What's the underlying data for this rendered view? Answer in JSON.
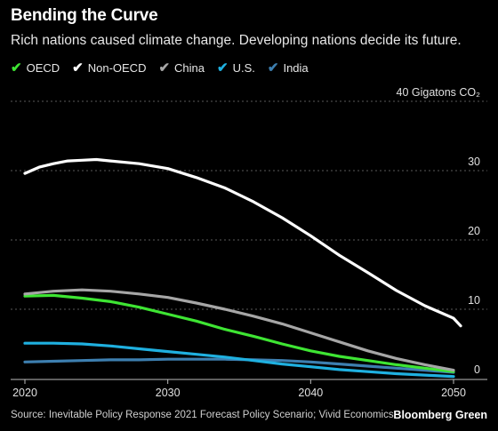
{
  "header": {
    "title": "Bending the Curve",
    "subtitle": "Rich nations caused climate change. Developing nations decide its future."
  },
  "footer": {
    "source": "Source: Inevitable Policy Response 2021 Forecast Policy Scenario; Vivid Economics",
    "brand": "Bloomberg Green"
  },
  "chart_data": {
    "type": "line",
    "ylabel": "40 Gigatons CO₂",
    "ylim": [
      0,
      40
    ],
    "xlim": [
      2020,
      2050
    ],
    "yticks": [
      0,
      10,
      20,
      30,
      40
    ],
    "ytick_labels": [
      "0",
      "10",
      "20",
      "30",
      ""
    ],
    "xticks": [
      2020,
      2030,
      2040,
      2050
    ],
    "xtick_labels": [
      "2020",
      "2030",
      "2040",
      "2050"
    ],
    "grid": "horizontal-dashed",
    "legend_position": "top-left",
    "series": [
      {
        "name": "OECD",
        "color": "#3ee533",
        "points": [
          [
            2020,
            11.9
          ],
          [
            2022,
            12
          ],
          [
            2024,
            11.6
          ],
          [
            2026,
            11.1
          ],
          [
            2028,
            10.3
          ],
          [
            2030,
            9.3
          ],
          [
            2032,
            8.3
          ],
          [
            2034,
            7.1
          ],
          [
            2036,
            6.1
          ],
          [
            2038,
            5
          ],
          [
            2040,
            4
          ],
          [
            2042,
            3.2
          ],
          [
            2044,
            2.6
          ],
          [
            2046,
            2
          ],
          [
            2048,
            1.5
          ],
          [
            2050,
            1
          ]
        ]
      },
      {
        "name": "Non-OECD",
        "color": "#ffffff",
        "points": [
          [
            2020,
            29.6
          ],
          [
            2021,
            30.5
          ],
          [
            2022,
            31
          ],
          [
            2023,
            31.4
          ],
          [
            2024,
            31.5
          ],
          [
            2025,
            31.6
          ],
          [
            2026,
            31.4
          ],
          [
            2028,
            31
          ],
          [
            2030,
            30.3
          ],
          [
            2032,
            29
          ],
          [
            2034,
            27.5
          ],
          [
            2036,
            25.5
          ],
          [
            2038,
            23.2
          ],
          [
            2040,
            20.6
          ],
          [
            2042,
            17.8
          ],
          [
            2044,
            15.3
          ],
          [
            2046,
            12.7
          ],
          [
            2048,
            10.5
          ],
          [
            2050,
            8.7
          ],
          [
            2050.5,
            7.6
          ]
        ]
      },
      {
        "name": "China",
        "color": "#a6a6a6",
        "points": [
          [
            2020,
            12.2
          ],
          [
            2022,
            12.6
          ],
          [
            2024,
            12.8
          ],
          [
            2026,
            12.6
          ],
          [
            2028,
            12.2
          ],
          [
            2030,
            11.7
          ],
          [
            2032,
            10.9
          ],
          [
            2034,
            10
          ],
          [
            2036,
            9
          ],
          [
            2038,
            7.9
          ],
          [
            2040,
            6.6
          ],
          [
            2042,
            5.3
          ],
          [
            2044,
            4
          ],
          [
            2046,
            2.9
          ],
          [
            2048,
            2
          ],
          [
            2050,
            1.2
          ]
        ]
      },
      {
        "name": "U.S.",
        "color": "#1fb0e0",
        "points": [
          [
            2020,
            5.1
          ],
          [
            2022,
            5.1
          ],
          [
            2024,
            5
          ],
          [
            2026,
            4.7
          ],
          [
            2028,
            4.3
          ],
          [
            2030,
            3.9
          ],
          [
            2032,
            3.5
          ],
          [
            2034,
            3.1
          ],
          [
            2036,
            2.6
          ],
          [
            2038,
            2.1
          ],
          [
            2040,
            1.7
          ],
          [
            2042,
            1.3
          ],
          [
            2044,
            1
          ],
          [
            2046,
            0.7
          ],
          [
            2048,
            0.5
          ],
          [
            2050,
            0.3
          ]
        ]
      },
      {
        "name": "India",
        "color": "#3d7fb0",
        "points": [
          [
            2020,
            2.4
          ],
          [
            2022,
            2.5
          ],
          [
            2024,
            2.6
          ],
          [
            2026,
            2.7
          ],
          [
            2028,
            2.7
          ],
          [
            2030,
            2.8
          ],
          [
            2032,
            2.8
          ],
          [
            2034,
            2.8
          ],
          [
            2036,
            2.7
          ],
          [
            2038,
            2.6
          ],
          [
            2040,
            2.4
          ],
          [
            2042,
            2.1
          ],
          [
            2044,
            1.8
          ],
          [
            2046,
            1.5
          ],
          [
            2048,
            1.2
          ],
          [
            2050,
            0.9
          ]
        ]
      }
    ]
  }
}
